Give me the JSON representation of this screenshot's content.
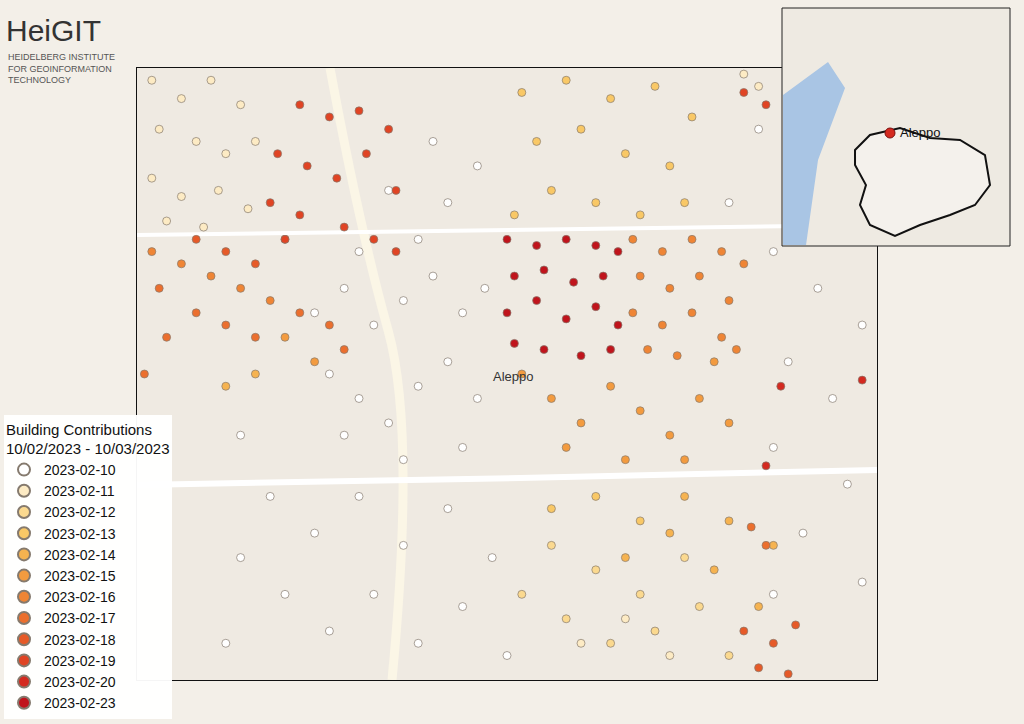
{
  "chart_data": {
    "type": "scatter",
    "logo": {
      "name": "HeiGIT",
      "subtitle": [
        "HEIDELBERG INSTITUTE",
        "FOR GEOINFORMATION",
        "TECHNOLOGY"
      ]
    },
    "legend_title": [
      "Building Contributions",
      "10/02/2023 - 10/03/2023"
    ],
    "map_label": {
      "text": "Aleppo",
      "x": 50.8,
      "y": 51.2
    },
    "inset": {
      "label": "Aleppo"
    },
    "xlim": [
      0,
      100
    ],
    "ylim": [
      0,
      100
    ],
    "tick_labels": false,
    "grid": false,
    "legend": "bottom left",
    "marker": "circle",
    "series": [
      {
        "name": "2023-02-10",
        "color": "#ffffff",
        "x": [
          24,
          28,
          32,
          36,
          40,
          44,
          47,
          38,
          42,
          46,
          40,
          34,
          30,
          26,
          30,
          34,
          38,
          42,
          46,
          44,
          36,
          28,
          14,
          18,
          24,
          30,
          36,
          42,
          48,
          20,
          26,
          32,
          38,
          44,
          50,
          14,
          12,
          86,
          92,
          98,
          88,
          94,
          86,
          96,
          90,
          98,
          86,
          80,
          84
        ],
        "y": [
          60,
          64,
          58,
          62,
          66,
          60,
          64,
          72,
          78,
          84,
          88,
          80,
          70,
          50,
          46,
          42,
          48,
          52,
          46,
          38,
          36,
          40,
          40,
          30,
          24,
          30,
          22,
          28,
          20,
          14,
          8,
          14,
          6,
          12,
          4,
          20,
          6,
          70,
          64,
          58,
          52,
          46,
          38,
          32,
          24,
          16,
          14,
          78,
          90
        ]
      },
      {
        "name": "2023-02-11",
        "color": "#fdebc4",
        "x": [
          2,
          6,
          10,
          14,
          3,
          8,
          12,
          16,
          2,
          6,
          11,
          15,
          4,
          9,
          82,
          84,
          60,
          66,
          72
        ],
        "y": [
          98,
          95,
          98,
          94,
          90,
          88,
          86,
          88,
          82,
          79,
          80,
          77,
          75,
          74,
          99,
          97,
          6,
          10,
          4
        ]
      },
      {
        "name": "2023-02-12",
        "color": "#fbd98f",
        "x": [
          56,
          62,
          68,
          74,
          58,
          64,
          70,
          76,
          80,
          52
        ],
        "y": [
          22,
          18,
          14,
          20,
          10,
          6,
          8,
          12,
          4,
          14
        ]
      },
      {
        "name": "2023-02-13",
        "color": "#f9c866",
        "x": [
          52,
          58,
          64,
          70,
          75,
          54,
          60,
          66,
          72,
          56,
          62,
          68,
          74,
          51,
          62,
          68,
          56
        ],
        "y": [
          96,
          98,
          95,
          97,
          92,
          88,
          90,
          86,
          84,
          80,
          78,
          76,
          78,
          76,
          30,
          26,
          28
        ]
      },
      {
        "name": "2023-02-14",
        "color": "#f6b350",
        "x": [
          74,
          80,
          86,
          78,
          84,
          72,
          66,
          12,
          16
        ],
        "y": [
          30,
          26,
          22,
          18,
          12,
          24,
          20,
          48,
          50
        ]
      },
      {
        "name": "2023-02-15",
        "color": "#f39b3f",
        "x": [
          52,
          56,
          60,
          64,
          68,
          72,
          76,
          80,
          58,
          66,
          74,
          78,
          20,
          24
        ],
        "y": [
          50,
          46,
          42,
          48,
          44,
          40,
          46,
          42,
          38,
          36,
          36,
          52,
          56,
          52
        ]
      },
      {
        "name": "2023-02-16",
        "color": "#ef8535",
        "x": [
          67,
          71,
          75,
          79,
          82,
          68,
          72,
          76,
          80,
          67,
          71,
          75,
          79,
          69,
          73,
          81,
          2,
          6,
          10,
          14,
          18
        ],
        "y": [
          72,
          70,
          72,
          70,
          68,
          66,
          64,
          66,
          62,
          60,
          58,
          60,
          56,
          54,
          53,
          54,
          70,
          68,
          66,
          64,
          62
        ]
      },
      {
        "name": "2023-02-17",
        "color": "#eb6f2e",
        "x": [
          3,
          8,
          12,
          16,
          4,
          22,
          26,
          28,
          1,
          83,
          85
        ],
        "y": [
          64,
          60,
          58,
          56,
          56,
          60,
          58,
          54,
          50,
          25,
          22
        ]
      },
      {
        "name": "2023-02-18",
        "color": "#e65a28",
        "x": [
          12,
          16,
          20,
          8,
          82,
          86,
          89,
          84,
          88
        ],
        "y": [
          70,
          68,
          72,
          72,
          8,
          6,
          9,
          2,
          1
        ]
      },
      {
        "name": "2023-02-19",
        "color": "#e04424",
        "x": [
          22,
          26,
          30,
          34,
          19,
          23,
          27,
          31,
          35,
          18,
          22,
          28,
          32,
          35,
          20,
          82,
          85
        ],
        "y": [
          94,
          92,
          93,
          90,
          86,
          84,
          82,
          86,
          80,
          78,
          76,
          74,
          72,
          70,
          72,
          96,
          94
        ]
      },
      {
        "name": "2023-02-20",
        "color": "#d42a20",
        "x": [
          87,
          98,
          85
        ],
        "y": [
          48,
          49,
          35
        ]
      },
      {
        "name": "2023-02-23",
        "color": "#c0141c",
        "x": [
          50,
          54,
          58,
          62,
          65,
          51,
          55,
          59,
          63,
          50,
          54,
          58,
          62,
          65,
          51,
          55,
          60,
          64
        ],
        "y": [
          72,
          71,
          72,
          71,
          70,
          66,
          67,
          65,
          66,
          60,
          62,
          59,
          61,
          58,
          55,
          54,
          53,
          54
        ]
      }
    ]
  }
}
